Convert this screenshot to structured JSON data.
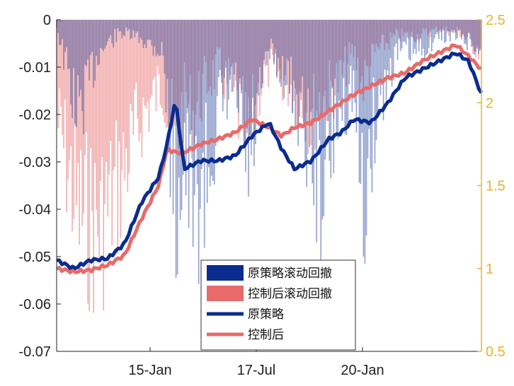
{
  "chart_data": {
    "type": "line",
    "colors": {
      "original": "#0a2c8f",
      "controlled": "#e86a6a",
      "right_axis": "#e8b520"
    },
    "x_ticks": [
      "15-Jan",
      "17-Jul",
      "20-Jan"
    ],
    "left_axis": {
      "ylim": [
        -0.07,
        0
      ],
      "ticks": [
        "0",
        "-0.01",
        "-0.02",
        "-0.03",
        "-0.04",
        "-0.05",
        "-0.06",
        "-0.07"
      ]
    },
    "right_axis": {
      "ylim": [
        0.5,
        2.5
      ],
      "ticks": [
        "2.5",
        "2",
        "1.5",
        "1",
        "0.5"
      ]
    },
    "legend": [
      "原策略滚动回撤",
      "控制后滚动回撤",
      "原策略",
      "控制后"
    ],
    "series": [
      {
        "name": "原策略",
        "axis": "right",
        "x": [
          0,
          0.04,
          0.08,
          0.12,
          0.16,
          0.2,
          0.24,
          0.26,
          0.28,
          0.3,
          0.34,
          0.38,
          0.42,
          0.46,
          0.5,
          0.53,
          0.56,
          0.6,
          0.64,
          0.67,
          0.7,
          0.74,
          0.78,
          0.82,
          0.86,
          0.9,
          0.94,
          0.97,
          1.0
        ],
        "values": [
          1.05,
          1.0,
          1.05,
          1.06,
          1.15,
          1.4,
          1.55,
          1.75,
          2.02,
          1.6,
          1.65,
          1.65,
          1.68,
          1.8,
          1.88,
          1.72,
          1.6,
          1.65,
          1.78,
          1.82,
          1.9,
          1.88,
          2.0,
          2.15,
          2.2,
          2.25,
          2.3,
          2.25,
          2.05
        ]
      },
      {
        "name": "控制后",
        "axis": "right",
        "x": [
          0,
          0.04,
          0.08,
          0.12,
          0.16,
          0.2,
          0.24,
          0.26,
          0.28,
          0.3,
          0.34,
          0.38,
          0.42,
          0.46,
          0.5,
          0.53,
          0.56,
          0.6,
          0.64,
          0.67,
          0.7,
          0.74,
          0.78,
          0.82,
          0.86,
          0.9,
          0.94,
          0.97,
          1.0
        ],
        "values": [
          1.0,
          0.98,
          0.99,
          1.02,
          1.08,
          1.3,
          1.5,
          1.72,
          1.7,
          1.7,
          1.75,
          1.78,
          1.82,
          1.9,
          1.85,
          1.8,
          1.85,
          1.88,
          1.95,
          2.0,
          2.05,
          2.1,
          2.15,
          2.18,
          2.25,
          2.3,
          2.35,
          2.28,
          2.2
        ]
      },
      {
        "name": "原策略滚动回撤",
        "axis": "left",
        "x": [
          0,
          0.05,
          0.1,
          0.15,
          0.2,
          0.25,
          0.28,
          0.3,
          0.32,
          0.35,
          0.38,
          0.42,
          0.45,
          0.48,
          0.5,
          0.55,
          0.6,
          0.62,
          0.66,
          0.7,
          0.72,
          0.75,
          0.8,
          0.85,
          0.9,
          0.95,
          1.0
        ],
        "values": [
          -0.002,
          -0.03,
          -0.01,
          -0.004,
          -0.006,
          -0.01,
          -0.06,
          -0.04,
          -0.062,
          -0.05,
          -0.03,
          -0.02,
          -0.05,
          -0.025,
          -0.01,
          -0.02,
          -0.04,
          -0.057,
          -0.03,
          -0.02,
          -0.063,
          -0.03,
          -0.01,
          -0.01,
          -0.005,
          -0.005,
          -0.01
        ]
      },
      {
        "name": "控制后滚动回撤",
        "axis": "left",
        "x": [
          0,
          0.05,
          0.1,
          0.15,
          0.2,
          0.25,
          0.28,
          0.3,
          0.32,
          0.35,
          0.38,
          0.42,
          0.45,
          0.48,
          0.5,
          0.55,
          0.6,
          0.62,
          0.66,
          0.7,
          0.72,
          0.75,
          0.8,
          0.85,
          0.9,
          0.95,
          1.0
        ],
        "values": [
          -0.03,
          -0.06,
          -0.065,
          -0.05,
          -0.03,
          -0.02,
          -0.04,
          -0.025,
          -0.03,
          -0.02,
          -0.015,
          -0.025,
          -0.04,
          -0.02,
          -0.015,
          -0.02,
          -0.03,
          -0.025,
          -0.02,
          -0.01,
          -0.02,
          -0.01,
          -0.005,
          -0.005,
          -0.003,
          -0.004,
          -0.01
        ]
      }
    ]
  }
}
